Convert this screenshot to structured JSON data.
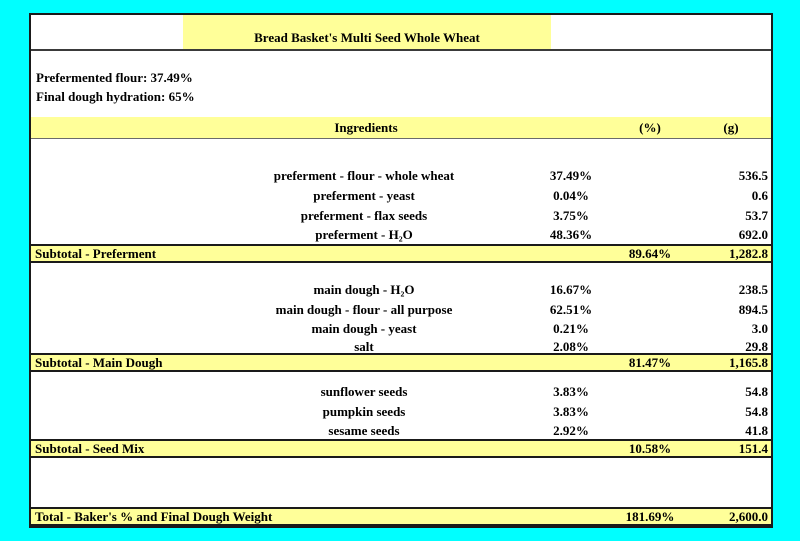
{
  "colors": {
    "background": "#00ffff",
    "highlight": "#ffff99",
    "border": "#1a1a1a",
    "text": "#000000"
  },
  "title": "Bread Basket's Multi Seed Whole Wheat",
  "info": {
    "prefermented_flour": "Prefermented flour: 37.49%",
    "final_hydration": "Final dough hydration: 65%"
  },
  "header": {
    "ingredients": "Ingredients",
    "pct": "(%)",
    "g": "(g)"
  },
  "rows": {
    "preferment": [
      {
        "name": "preferment - flour - whole wheat",
        "pct": "37.49%",
        "g": "536.5"
      },
      {
        "name": "preferment - yeast",
        "pct": "0.04%",
        "g": "0.6"
      },
      {
        "name": "preferment - flax seeds",
        "pct": "3.75%",
        "g": "53.7"
      },
      {
        "name": "preferment - H₂O",
        "pct": "48.36%",
        "g": "692.0"
      }
    ],
    "subtotal_preferment": {
      "label": "Subtotal - Preferment",
      "pct": "89.64%",
      "g": "1,282.8"
    },
    "main_dough": [
      {
        "name": "main dough - H₂O",
        "pct": "16.67%",
        "g": "238.5"
      },
      {
        "name": "main dough - flour - all purpose",
        "pct": "62.51%",
        "g": "894.5"
      },
      {
        "name": "main dough - yeast",
        "pct": "0.21%",
        "g": "3.0"
      },
      {
        "name": "salt",
        "pct": "2.08%",
        "g": "29.8"
      }
    ],
    "subtotal_main_dough": {
      "label": "Subtotal - Main Dough",
      "pct": "81.47%",
      "g": "1,165.8"
    },
    "seed_mix": [
      {
        "name": "sunflower seeds",
        "pct": "3.83%",
        "g": "54.8"
      },
      {
        "name": "pumpkin seeds",
        "pct": "3.83%",
        "g": "54.8"
      },
      {
        "name": "sesame seeds",
        "pct": "2.92%",
        "g": "41.8"
      }
    ],
    "subtotal_seed_mix": {
      "label": "Subtotal - Seed Mix",
      "pct": "10.58%",
      "g": "151.4"
    },
    "total": {
      "label": "Total - Baker's % and Final Dough Weight",
      "pct": "181.69%",
      "g": "2,600.0"
    }
  }
}
